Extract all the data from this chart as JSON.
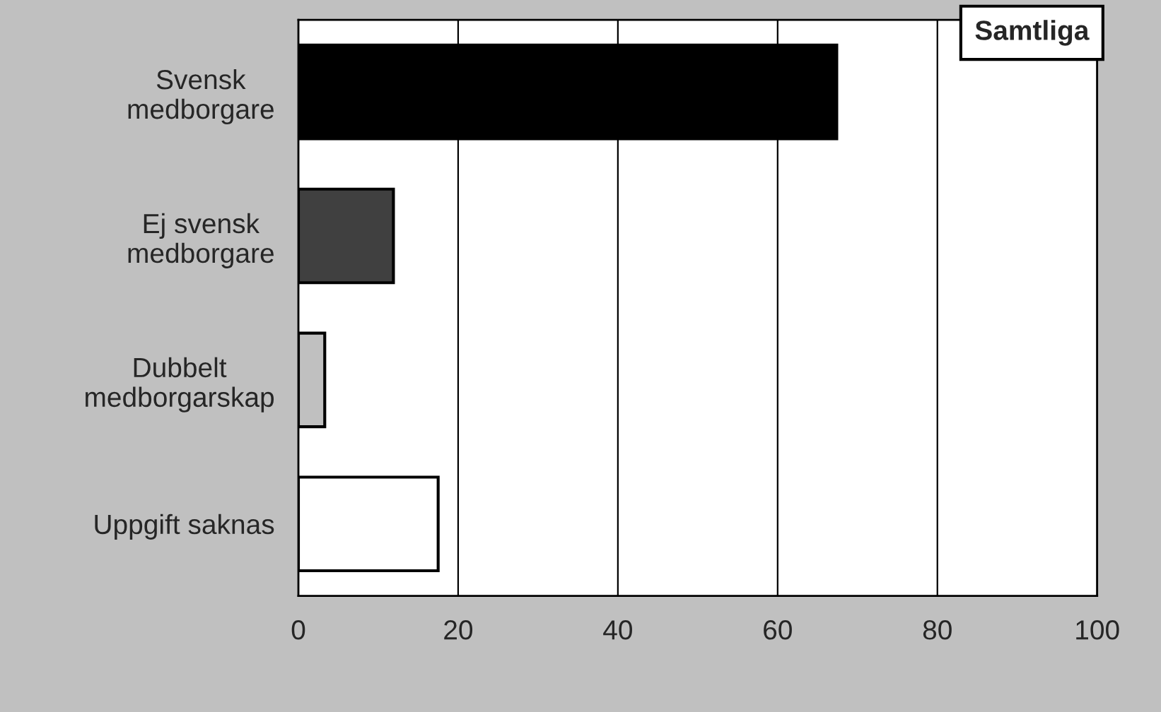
{
  "chart_data": {
    "type": "bar",
    "orientation": "horizontal",
    "title": "Samtliga",
    "categories": [
      "Svensk\nmedborgare",
      "Ej svensk\nmedborgare",
      "Dubbelt\nmedborgarskap",
      "Uppgift saknas"
    ],
    "values": [
      67.4,
      11.9,
      3.3,
      17.5
    ],
    "colors": [
      "#000000",
      "#404040",
      "#c0c0c0",
      "#ffffff"
    ],
    "xlim": [
      0,
      100
    ],
    "xticks": [
      0,
      20,
      40,
      60,
      80,
      100
    ],
    "grid": "x",
    "legend": false
  }
}
